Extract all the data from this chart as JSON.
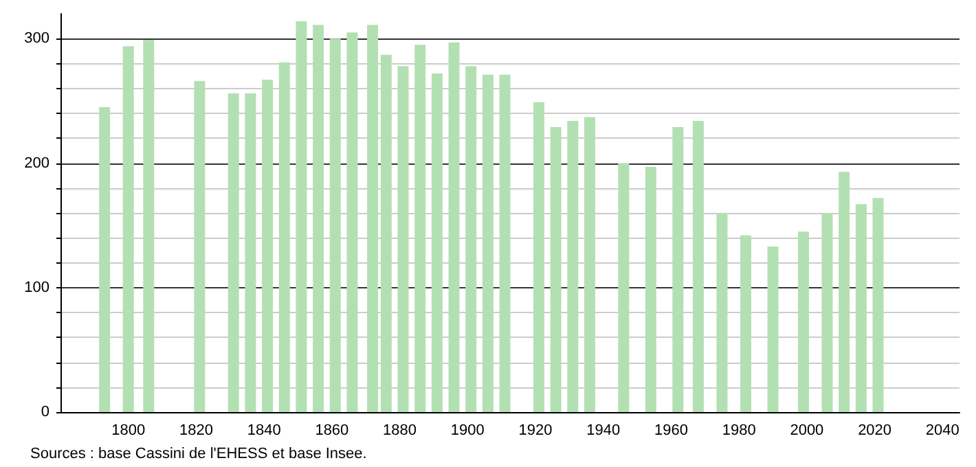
{
  "chart_data": {
    "type": "bar",
    "x": [
      1793,
      1800,
      1806,
      1821,
      1831,
      1836,
      1841,
      1846,
      1851,
      1856,
      1861,
      1866,
      1872,
      1876,
      1881,
      1886,
      1891,
      1896,
      1901,
      1906,
      1911,
      1921,
      1926,
      1931,
      1936,
      1946,
      1954,
      1962,
      1968,
      1975,
      1982,
      1990,
      1999,
      2006,
      2011,
      2016,
      2021
    ],
    "values": [
      245,
      294,
      299,
      266,
      256,
      256,
      267,
      281,
      314,
      311,
      300,
      305,
      311,
      287,
      278,
      295,
      272,
      297,
      278,
      271,
      271,
      249,
      229,
      234,
      237,
      200,
      197,
      229,
      234,
      160,
      142,
      133,
      145,
      160,
      193,
      167,
      172
    ],
    "color": "#b3e0b3",
    "xlim": [
      1780,
      2045
    ],
    "xticks": [
      1800,
      1820,
      1840,
      1860,
      1880,
      1900,
      1920,
      1940,
      1960,
      1980,
      2000,
      2020,
      2040
    ],
    "ylim": [
      0,
      320
    ],
    "yticks": [
      0,
      100,
      200,
      300
    ],
    "grid": "y",
    "annotations": [
      "Sources : base Cassini de l'EHESS et base Insee."
    ]
  }
}
